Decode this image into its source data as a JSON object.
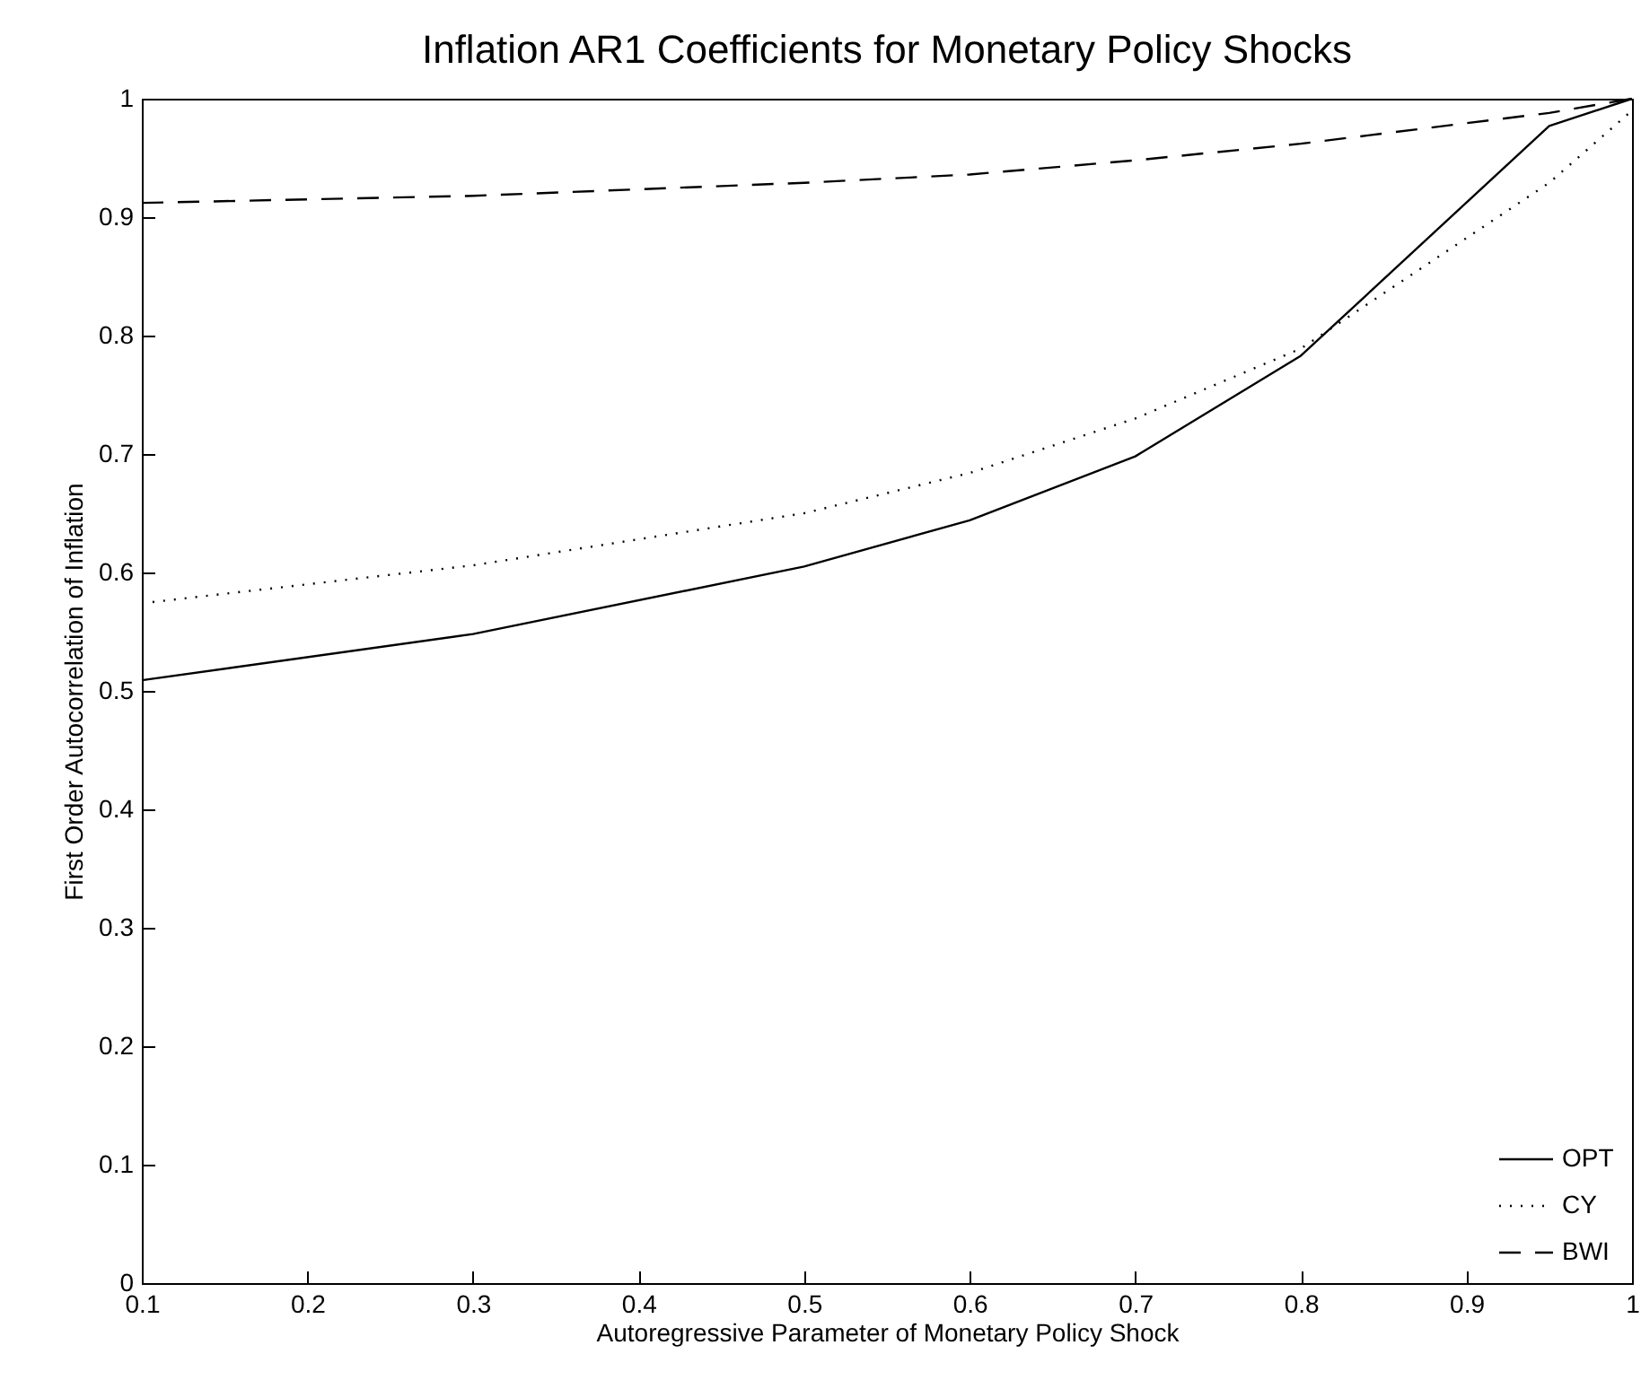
{
  "chart_data": {
    "type": "line",
    "title": "Inflation AR1 Coefficients for Monetary Policy Shocks",
    "xlabel": "Autoregressive Parameter of Monetary Policy Shock",
    "ylabel": "First Order Autocorrelation of Inflation",
    "x": [
      0.1,
      0.3,
      0.5,
      0.6,
      0.7,
      0.8,
      0.95,
      1.0
    ],
    "series": [
      {
        "name": "OPT",
        "color": "#000000",
        "line_style": "solid",
        "values": [
          0.509,
          0.548,
          0.605,
          0.644,
          0.698,
          0.783,
          0.977,
          1.0
        ]
      },
      {
        "name": "CY",
        "color": "#000000",
        "line_style": "dotted",
        "values": [
          0.574,
          0.606,
          0.65,
          0.684,
          0.73,
          0.789,
          0.929,
          0.99
        ]
      },
      {
        "name": "BWI",
        "color": "#000000",
        "line_style": "dashed",
        "values": [
          0.912,
          0.918,
          0.929,
          0.936,
          0.948,
          0.962,
          0.988,
          1.0
        ]
      }
    ],
    "xlim": [
      0.1,
      1
    ],
    "xticks": [
      0.1,
      0.2,
      0.3,
      0.4,
      0.5,
      0.6,
      0.7,
      0.8,
      0.9,
      1
    ],
    "ylim": [
      0,
      1
    ],
    "yticks": [
      0,
      0.1,
      0.2,
      0.3,
      0.4,
      0.5,
      0.6,
      0.7,
      0.8,
      0.9,
      1
    ],
    "grid": false,
    "legend": "bottom right",
    "marker": "none"
  }
}
